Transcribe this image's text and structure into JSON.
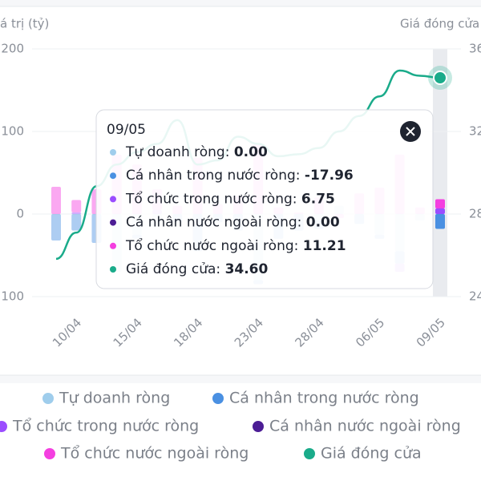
{
  "chart_data": {
    "type": "bar",
    "y_axis_title": "á trị (tỷ)",
    "y2_axis_title": "Giá đóng cửa",
    "categories": [
      null,
      "10/04",
      null,
      null,
      "15/04",
      null,
      null,
      "18/04",
      null,
      null,
      "23/04",
      null,
      null,
      "28/04",
      null,
      null,
      "06/05",
      null,
      null,
      "09/05"
    ],
    "ylim": [
      -100,
      200
    ],
    "yticks": [
      {
        "value": -100,
        "label": "100"
      },
      0,
      100,
      200
    ],
    "y2lim": [
      24,
      36
    ],
    "y2ticks": [
      24,
      28,
      32,
      36
    ],
    "grid": true,
    "series": [
      {
        "name": "Tự doanh ròng",
        "type": "bar",
        "color": "#9fcdec",
        "values": [
          0,
          0,
          0,
          -70,
          -25,
          -15,
          0,
          0,
          0,
          0,
          -80,
          0,
          0,
          -8,
          10,
          0,
          -25,
          -45,
          -8,
          0
        ]
      },
      {
        "name": "Cá nhân trong nước ròng",
        "type": "bar",
        "color": "#4a90e2",
        "values": [
          -32,
          -20,
          -35,
          0,
          -5,
          0,
          -10,
          -45,
          -10,
          -20,
          -5,
          -30,
          -20,
          -10,
          0,
          -12,
          -5,
          -15,
          0,
          -17.96
        ]
      },
      {
        "name": "Tổ chức trong nước ròng",
        "type": "bar",
        "color": "#9b4dff",
        "values": [
          0,
          2,
          0,
          0,
          0,
          5,
          0,
          0,
          0,
          0,
          0,
          0,
          0,
          0,
          0,
          0,
          0,
          -10,
          0,
          6.75
        ]
      },
      {
        "name": "Cá nhân nước ngoài ròng",
        "type": "bar",
        "color": "#4c1d95",
        "values": [
          0,
          0,
          0,
          0,
          0,
          0,
          0,
          0,
          0,
          0,
          0,
          0,
          0,
          0,
          0,
          0,
          0,
          0,
          0,
          0
        ]
      },
      {
        "name": "Tổ chức nước ngoài ròng",
        "type": "bar",
        "color": "#f43fe0",
        "values": [
          33,
          15,
          30,
          72,
          60,
          25,
          10,
          68,
          12,
          22,
          85,
          8,
          2,
          20,
          -5,
          25,
          32,
          72,
          8,
          11.21
        ]
      },
      {
        "name": "Giá đóng cửa",
        "type": "line",
        "axis": "y2",
        "color": "#1aab8a",
        "values": [
          25.83,
          27.1,
          29.35,
          30.4,
          31.0,
          31.4,
          32.55,
          30.4,
          30.6,
          31.75,
          31.4,
          30.8,
          30.9,
          31.2,
          32.0,
          32.75,
          33.7,
          34.95,
          34.7,
          34.6
        ]
      }
    ],
    "tooltip": {
      "index": 19,
      "rows": [
        {
          "label": "Tự doanh ròng:",
          "value": "0.00"
        },
        {
          "label": "Cá nhân trong nước ròng:",
          "value": "-17.96"
        },
        {
          "label": "Tổ chức trong nước ròng:",
          "value": "6.75"
        },
        {
          "label": "Cá nhân nước ngoài ròng:",
          "value": "0.00"
        },
        {
          "label": "Tổ chức nước ngoài ròng:",
          "value": "11.21"
        },
        {
          "label": "Giá đóng cửa:",
          "value": "34.60"
        }
      ]
    }
  }
}
